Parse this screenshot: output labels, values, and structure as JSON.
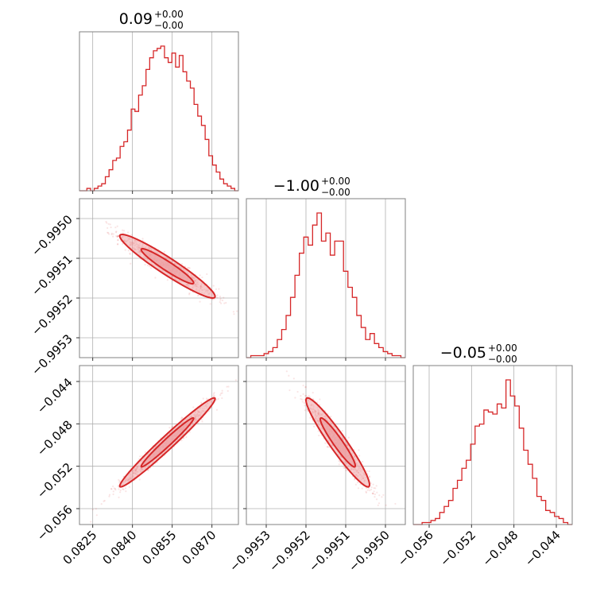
{
  "chart_data": {
    "type": "corner",
    "colors": {
      "main": "#d62728",
      "fill": "#eea4a6",
      "grid": "#b0b0b0",
      "frame": "#808080"
    },
    "params": [
      {
        "id": "p0",
        "title": {
          "value": "0.09",
          "plus": "+0.00",
          "minus": "−0.00"
        },
        "range": [
          0.082,
          0.088
        ],
        "ticks": [
          0.0825,
          0.084,
          0.0855,
          0.087
        ],
        "tick_labels": [
          "0.0825",
          "0.0840",
          "0.0855",
          "0.0870"
        ]
      },
      {
        "id": "p1",
        "title": {
          "value": "−1.00",
          "plus": "+0.00",
          "minus": "−0.00"
        },
        "range": [
          -0.99535,
          -0.99495
        ],
        "ticks": [
          -0.9953,
          -0.9952,
          -0.9951,
          -0.995
        ],
        "tick_labels": [
          "−0.9953",
          "−0.9952",
          "−0.9951",
          "−0.9950"
        ]
      },
      {
        "id": "p2",
        "title": {
          "value": "−0.05",
          "plus": "+0.00",
          "minus": "−0.00"
        },
        "range": [
          -0.0575,
          -0.0425
        ],
        "ticks": [
          -0.056,
          -0.052,
          -0.048,
          -0.044
        ],
        "tick_labels": [
          "−0.056",
          "−0.052",
          "−0.048",
          "−0.044"
        ]
      }
    ],
    "histograms": [
      [
        0,
        0,
        1,
        0,
        1,
        2,
        3,
        6,
        9,
        13,
        14,
        19,
        21,
        26,
        35,
        34,
        41,
        45,
        52,
        57,
        60,
        61,
        62,
        57,
        55,
        59,
        53,
        58,
        51,
        47,
        44,
        37,
        32,
        28,
        22,
        15,
        11,
        8,
        5,
        3,
        2,
        1,
        0
      ],
      [
        0,
        1,
        1,
        1,
        2,
        3,
        5,
        9,
        14,
        21,
        30,
        41,
        52,
        60,
        56,
        66,
        72,
        58,
        62,
        51,
        58,
        58,
        43,
        35,
        30,
        21,
        15,
        9,
        12,
        7,
        5,
        3,
        2,
        1,
        1,
        0
      ],
      [
        0,
        0,
        1,
        1,
        2,
        3,
        6,
        9,
        12,
        18,
        22,
        28,
        32,
        40,
        49,
        50,
        57,
        56,
        55,
        60,
        58,
        72,
        64,
        59,
        48,
        37,
        30,
        23,
        14,
        12,
        7,
        6,
        4,
        3,
        1,
        0
      ]
    ],
    "pairs": [
      {
        "x": "p0",
        "y": "p1",
        "mean": [
          0.08532,
          -0.99512
        ],
        "sd": [
          0.0009,
          4e-05
        ],
        "rho": -0.95
      },
      {
        "x": "p0",
        "y": "p2",
        "mean": [
          0.08532,
          -0.04975
        ],
        "sd": [
          0.0009,
          0.0021
        ],
        "rho": 0.98
      },
      {
        "x": "p1",
        "y": "p2",
        "mean": [
          -0.99512,
          -0.04975
        ],
        "sd": [
          4e-05,
          0.0021
        ],
        "rho": -0.95
      }
    ]
  }
}
